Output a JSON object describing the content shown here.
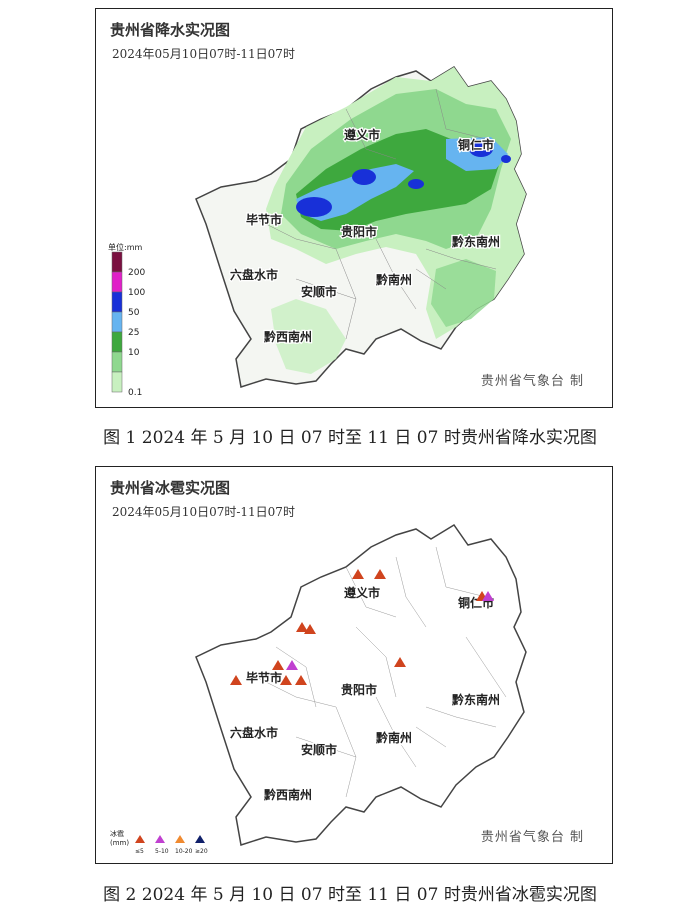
{
  "figure1": {
    "title": "贵州省降水实况图",
    "subtitle": "2024年05月10日07时-11日07时",
    "credit": "贵州省气象台 制",
    "caption": "图 1   2024 年 5 月 10 日 07 时至 11 日 07 时贵州省降水实况图",
    "legend_unit": "单位:mm",
    "legend": [
      {
        "label": "200",
        "color": "#7a1040"
      },
      {
        "label": "100",
        "color": "#e020c8"
      },
      {
        "label": "50",
        "color": "#1830d8"
      },
      {
        "label": "25",
        "color": "#66b4f0"
      },
      {
        "label": "10",
        "color": "#3ea83e"
      },
      {
        "label": "",
        "color": "#8fd88f"
      },
      {
        "label": "0.1",
        "color": "#c8f0c0"
      }
    ]
  },
  "figure2": {
    "title": "贵州省冰雹实况图",
    "subtitle": "2024年05月10日07时-11日07时",
    "credit": "贵州省气象台 制",
    "caption": "图 2   2024 年 5 月 10 日 07 时至 11 日 07 时贵州省冰雹实况图",
    "legend_title": "冰雹\n(mm)",
    "legend": [
      {
        "label": "≤5",
        "color": "#d0441e"
      },
      {
        "label": "5-10",
        "color": "#c040d0"
      },
      {
        "label": "10-20",
        "color": "#f08a30"
      },
      {
        "label": "≥20",
        "color": "#10206a"
      }
    ]
  },
  "cities": {
    "zunyi": "遵义市",
    "tongren": "铜仁市",
    "bijie": "毕节市",
    "guiyang": "贵阳市",
    "qiandongnan": "黔东南州",
    "liupanshui": "六盘水市",
    "anshun": "安顺市",
    "qiannan": "黔南州",
    "qianxinan": "黔西南州"
  }
}
